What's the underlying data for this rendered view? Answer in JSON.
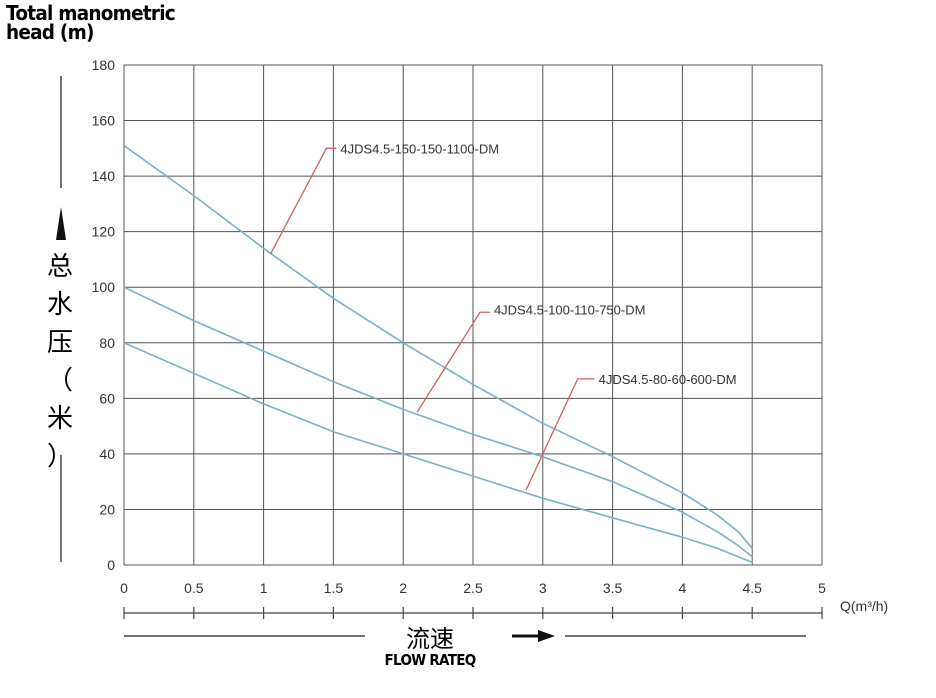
{
  "chart_data": {
    "type": "line",
    "title": "Total manometric\nhead (m)",
    "ylabel_cn": [
      "总",
      "水",
      "压",
      "（",
      "米",
      "）"
    ],
    "xlabel_cn": "流速",
    "xlabel_en": "FLOW RATEQ",
    "xunit": "Q(m³/h)",
    "xlim": [
      0,
      5
    ],
    "ylim": [
      0,
      180
    ],
    "x_ticks": [
      "0",
      "0.5",
      "1",
      "1.5",
      "2",
      "2.5",
      "3",
      "3.5",
      "4",
      "4.5",
      "5"
    ],
    "y_ticks": [
      "0",
      "20",
      "40",
      "60",
      "80",
      "100",
      "120",
      "140",
      "160",
      "180"
    ],
    "grid": true,
    "series": [
      {
        "name": "4JDS4.5-150-150-1100-DM",
        "x": [
          0,
          0.5,
          1,
          1.5,
          2,
          2.5,
          3,
          3.5,
          4,
          4.25,
          4.4,
          4.5
        ],
        "y": [
          151,
          133,
          114,
          96,
          80,
          65,
          51,
          39,
          26,
          18,
          12,
          6
        ]
      },
      {
        "name": "4JDS4.5-100-110-750-DM",
        "x": [
          0,
          0.5,
          1,
          1.5,
          2,
          2.5,
          3,
          3.5,
          4,
          4.25,
          4.4,
          4.5
        ],
        "y": [
          100,
          88,
          77,
          66,
          56,
          47,
          39,
          30,
          19,
          12,
          7,
          3
        ]
      },
      {
        "name": "4JDS4.5-80-60-600-DM",
        "x": [
          0,
          0.5,
          1,
          1.5,
          2,
          2.5,
          3,
          3.5,
          4,
          4.25,
          4.4,
          4.5
        ],
        "y": [
          80,
          69,
          58,
          48,
          40,
          32,
          24,
          17,
          10,
          6,
          3,
          1
        ]
      }
    ],
    "annotations": [
      {
        "series": "4JDS4.5-150-150-1100-DM",
        "point": [
          1.05,
          112
        ],
        "elbow": [
          1.45,
          150
        ],
        "text_at": [
          1.55,
          150
        ]
      },
      {
        "series": "4JDS4.5-100-110-750-DM",
        "point": [
          2.1,
          55
        ],
        "elbow": [
          2.55,
          91
        ],
        "text_at": [
          2.65,
          92
        ]
      },
      {
        "series": "4JDS4.5-80-60-600-DM",
        "point": [
          2.88,
          27
        ],
        "elbow": [
          3.25,
          67
        ],
        "text_at": [
          3.4,
          67
        ]
      }
    ]
  },
  "colors": {
    "curve": "#7ab0c6",
    "grid": "#555555",
    "leader": "#d06060",
    "label": "#333333"
  }
}
